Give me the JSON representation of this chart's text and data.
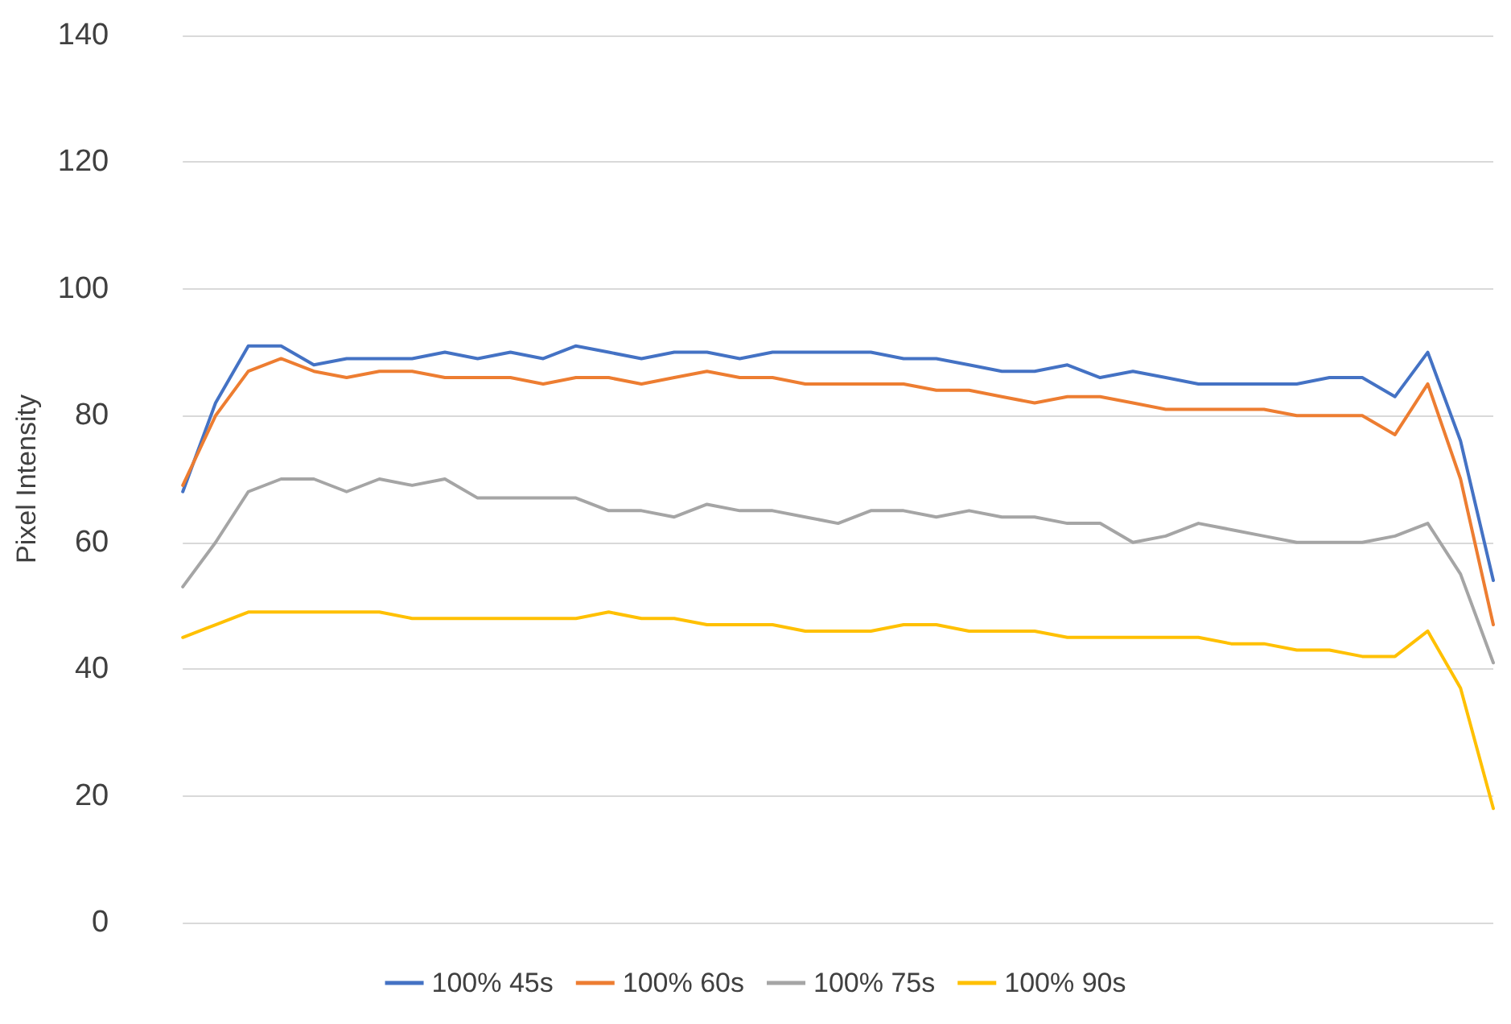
{
  "chart_data": {
    "type": "line",
    "ylabel": "Pixel Intensity",
    "categories": [
      null,
      null,
      null,
      null,
      null,
      null,
      null,
      null,
      null,
      null,
      null,
      null,
      null,
      null,
      null,
      null,
      null,
      null,
      null,
      null,
      null,
      null,
      null,
      null,
      null,
      null,
      null,
      null,
      null,
      null,
      null,
      null,
      null,
      null,
      null,
      null,
      null,
      null,
      null,
      null,
      null
    ],
    "series": [
      {
        "name": "100% 45s",
        "color": "#4472c4",
        "values": [
          68,
          82,
          91,
          91,
          88,
          89,
          89,
          89,
          90,
          89,
          90,
          89,
          91,
          90,
          89,
          90,
          90,
          89,
          90,
          90,
          90,
          90,
          89,
          89,
          88,
          87,
          87,
          88,
          86,
          87,
          86,
          85,
          85,
          85,
          85,
          86,
          86,
          83,
          90,
          76,
          54
        ]
      },
      {
        "name": "100% 60s",
        "color": "#ed7d31",
        "values": [
          69,
          80,
          87,
          89,
          87,
          86,
          87,
          87,
          86,
          86,
          86,
          85,
          86,
          86,
          85,
          86,
          87,
          86,
          86,
          85,
          85,
          85,
          85,
          84,
          84,
          83,
          82,
          83,
          83,
          82,
          81,
          81,
          81,
          81,
          80,
          80,
          80,
          77,
          85,
          70,
          47
        ]
      },
      {
        "name": "100% 75s",
        "color": "#a5a5a5",
        "values": [
          53,
          60,
          68,
          70,
          70,
          68,
          70,
          69,
          70,
          67,
          67,
          67,
          67,
          65,
          65,
          64,
          66,
          65,
          65,
          64,
          63,
          65,
          65,
          64,
          65,
          64,
          64,
          63,
          63,
          60,
          61,
          63,
          62,
          61,
          60,
          60,
          60,
          61,
          63,
          55,
          41
        ]
      },
      {
        "name": "100% 90s",
        "color": "#ffc000",
        "values": [
          45,
          47,
          49,
          49,
          49,
          49,
          49,
          48,
          48,
          48,
          48,
          48,
          48,
          49,
          48,
          48,
          47,
          47,
          47,
          46,
          46,
          46,
          47,
          47,
          46,
          46,
          46,
          45,
          45,
          45,
          45,
          45,
          44,
          44,
          43,
          43,
          42,
          42,
          46,
          37,
          18
        ]
      }
    ],
    "ylim": [
      0,
      140
    ],
    "yticks": [
      0,
      20,
      40,
      60,
      80,
      100,
      120,
      140
    ],
    "grid": "y",
    "legend": "bottom",
    "marker": "none",
    "line_style": "solid"
  }
}
